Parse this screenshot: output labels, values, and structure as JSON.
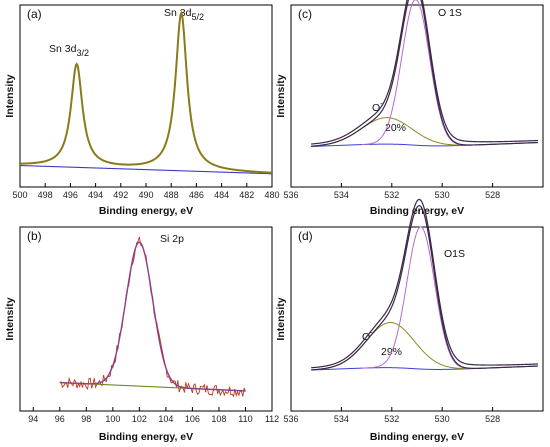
{
  "chart_data": [
    {
      "id": "a",
      "type": "line",
      "panel_label": "(a)",
      "xlabel": "Binding energy, eV",
      "ylabel": "Intensity",
      "xlim": [
        500,
        480
      ],
      "ylim": [
        0,
        1.1
      ],
      "x_ticks": [
        500,
        498,
        496,
        494,
        492,
        490,
        488,
        486,
        484,
        482,
        480
      ],
      "colors": {
        "spectrum": "#8b7a1a",
        "background": "#3b3bc8"
      },
      "peaks": [
        {
          "label_main": "Sn 3d",
          "label_sub": "3/2",
          "x": 495.5,
          "height": 0.62,
          "width": 0.55
        },
        {
          "label_main": "Sn 3d",
          "label_sub": "5/2",
          "x": 487.2,
          "height": 0.95,
          "width": 0.55
        }
      ],
      "background_line": [
        [
          500,
          0.13
        ],
        [
          480,
          0.08
        ]
      ]
    },
    {
      "id": "b",
      "type": "line",
      "panel_label": "(b)",
      "xlabel": "Binding energy, eV",
      "ylabel": "Intensity",
      "xlim": [
        93,
        112
      ],
      "ylim": [
        0,
        1.1
      ],
      "x_ticks": [
        94,
        96,
        98,
        100,
        102,
        104,
        106,
        108,
        110,
        112
      ],
      "colors": {
        "raw": "#c0391b",
        "fit": "#8a3f8e",
        "baseline": "#6b8a1a"
      },
      "peak": {
        "label": "Si 2p",
        "x": 102.0,
        "height": 0.86,
        "width": 1.0
      },
      "baseline": [
        [
          96,
          0.17
        ],
        [
          110,
          0.12
        ]
      ]
    },
    {
      "id": "c",
      "type": "line",
      "panel_label": "(c)",
      "xlabel": "Binding energy, eV",
      "ylabel": "Intensity",
      "xlim": [
        536,
        526
      ],
      "ylim": [
        0,
        1.1
      ],
      "x_ticks": [
        536,
        534,
        532,
        530,
        528
      ],
      "colors": {
        "envelope": "#3a2845",
        "main": "#b46ad1",
        "oxygen_defect": "#8e8a20",
        "background": "#3f3fd0"
      },
      "annotations": {
        "peak_label": "O 1S",
        "defect_label": "O",
        "defect_sup": "-",
        "percent": "20%"
      },
      "components": [
        {
          "name": "main",
          "x": 531.05,
          "height": 0.88,
          "width": 0.55
        },
        {
          "name": "defect",
          "x": 532.2,
          "height": 0.16,
          "width": 1.0
        }
      ]
    },
    {
      "id": "d",
      "type": "line",
      "panel_label": "(d)",
      "xlabel": "Binding energy, eV",
      "ylabel": "Intensity",
      "xlim": [
        536,
        526
      ],
      "ylim": [
        0,
        1.1
      ],
      "x_ticks": [
        536,
        534,
        532,
        530,
        528
      ],
      "colors": {
        "envelope": "#3a2845",
        "main": "#b46ad1",
        "oxygen_defect": "#8e8a20",
        "background": "#3f3fd0"
      },
      "annotations": {
        "peak_label": "O1S",
        "defect_label": "O",
        "defect_sup": "-",
        "percent": "29%"
      },
      "components": [
        {
          "name": "main",
          "x": 530.85,
          "height": 0.85,
          "width": 0.55
        },
        {
          "name": "defect",
          "x": 532.05,
          "height": 0.27,
          "width": 0.95
        }
      ]
    }
  ]
}
